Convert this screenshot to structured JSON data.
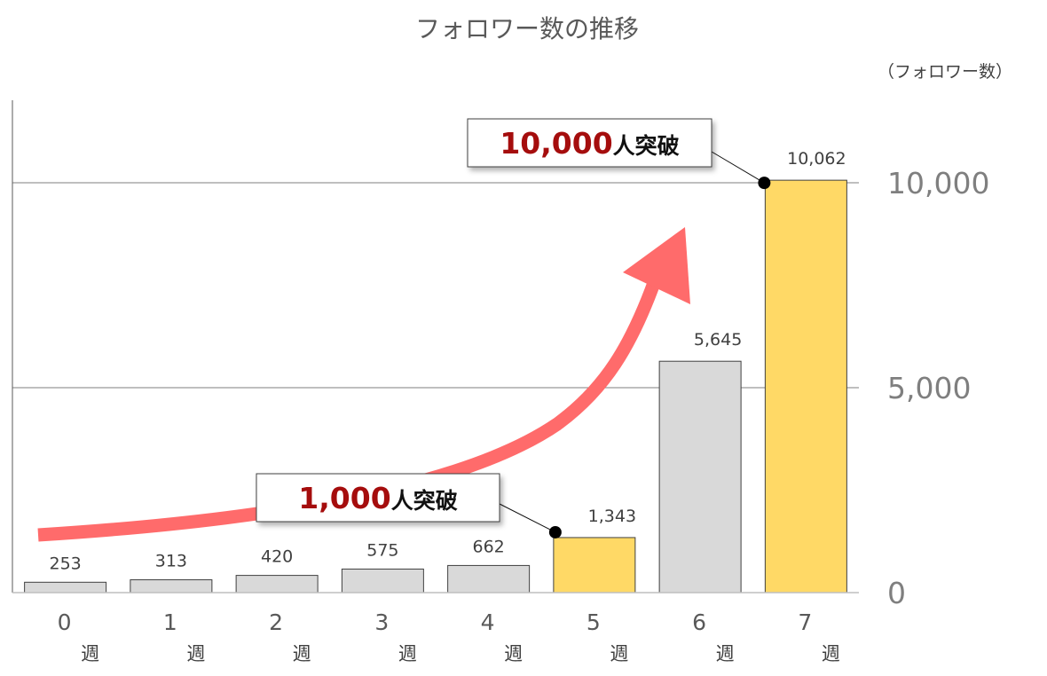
{
  "chart_data": {
    "type": "bar",
    "title": "フォロワー数の推移",
    "unit_label": "（フォロワー数）",
    "categories": [
      "0",
      "1",
      "2",
      "3",
      "4",
      "5",
      "6",
      "7"
    ],
    "category_suffix": "週",
    "values": [
      253,
      313,
      420,
      575,
      662,
      1343,
      5645,
      10062
    ],
    "value_labels": [
      "253",
      "313",
      "420",
      "575",
      "662",
      "1,343",
      "5,645",
      "10,062"
    ],
    "highlighted": [
      5,
      7
    ],
    "ylim": [
      0,
      12000
    ],
    "yticks": [
      0,
      5000,
      10000
    ],
    "ytick_labels": [
      "0",
      "5,000",
      "10,000"
    ],
    "grid": true,
    "y_axis_side": "right",
    "colors": {
      "bar": "#d9d9d9",
      "bar_highlight": "#ffd966",
      "bar_border": "#404040",
      "arrow": "#ff6b6b",
      "callout_number": "#a50d0d"
    },
    "annotations": [
      {
        "bar_index": 5,
        "number": "1,000",
        "text": "人突破"
      },
      {
        "bar_index": 7,
        "number": "10,000",
        "text": "人突破"
      }
    ]
  }
}
